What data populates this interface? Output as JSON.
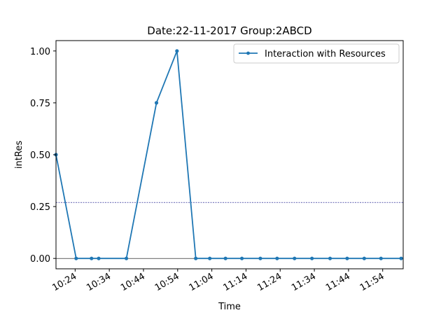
{
  "chart_data": {
    "type": "line",
    "title": "Date:22-11-2017  Group:2ABCD",
    "xlabel": "Time",
    "ylabel": "intRes",
    "x_ticks": [
      "10:24",
      "10:34",
      "10:44",
      "10:54",
      "11:04",
      "11:14",
      "11:24",
      "11:34",
      "11:44",
      "11:54"
    ],
    "x_tick_minutes": [
      624,
      634,
      644,
      654,
      664,
      674,
      684,
      694,
      704,
      714
    ],
    "xlim_minutes": [
      618.4,
      720
    ],
    "y_ticks": [
      "0.00",
      "0.25",
      "0.50",
      "0.75",
      "1.00"
    ],
    "y_tick_values": [
      0,
      0.25,
      0.5,
      0.75,
      1.0
    ],
    "ylim": [
      -0.05,
      1.05
    ],
    "legend": {
      "placement": "top-right"
    },
    "colors": {
      "series": "#1f77b4",
      "threshold": "#000080",
      "zero_line": "#000000"
    },
    "series": [
      {
        "name": "Interaction with Resources",
        "x_minutes": [
          618.4,
          624.3,
          628.8,
          630.9,
          639.0,
          647.8,
          653.8,
          659.3,
          663.4,
          668.0,
          672.8,
          678.2,
          683.1,
          688.2,
          693.3,
          698.6,
          703.6,
          708.6,
          713.5,
          719.4
        ],
        "y": [
          0.5,
          0,
          0,
          0,
          0,
          0.75,
          1.0,
          0,
          0,
          0,
          0,
          0,
          0,
          0,
          0,
          0,
          0,
          0,
          0,
          0
        ]
      }
    ],
    "reference_lines": [
      {
        "orientation": "horizontal",
        "y": 0.27,
        "style": "dashed"
      },
      {
        "orientation": "horizontal",
        "y": 0,
        "style": "solid"
      }
    ]
  }
}
